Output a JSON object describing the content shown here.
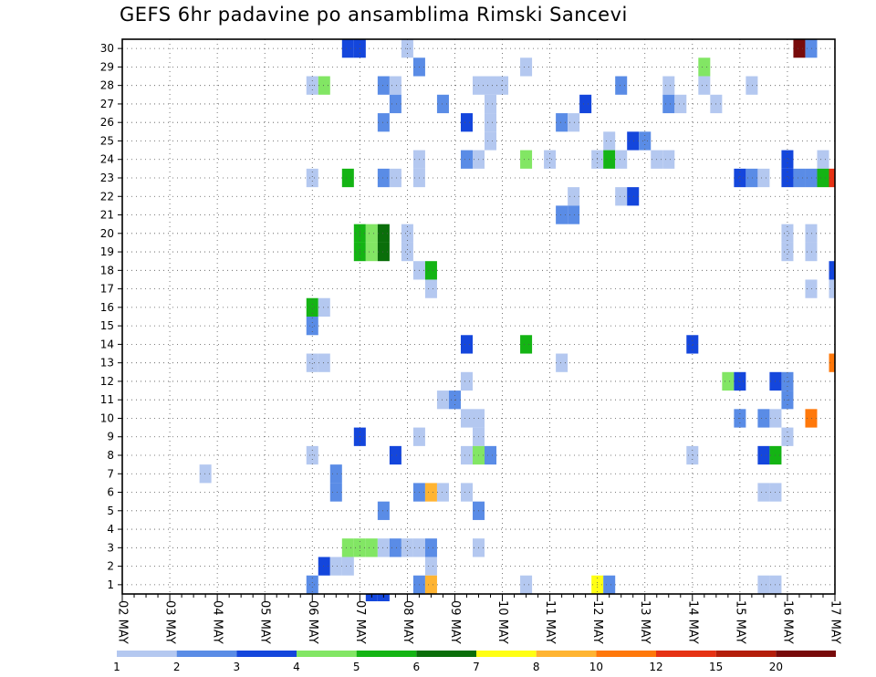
{
  "chart_data": {
    "type": "heatmap",
    "title": "GEFS 6hr padavine po ansamblima Rimski Sancevi",
    "xlabel": "",
    "ylabel": "",
    "x_tick_labels": [
      "02 MAY",
      "03 MAY",
      "04 MAY",
      "05 MAY",
      "06 MAY",
      "07 MAY",
      "08 MAY",
      "09 MAY",
      "10 MAY",
      "11 MAY",
      "12 MAY",
      "13 MAY",
      "14 MAY",
      "15 MAY",
      "16 MAY",
      "17 MAY"
    ],
    "y_tick_labels": [
      "1",
      "2",
      "3",
      "4",
      "5",
      "6",
      "7",
      "8",
      "9",
      "10",
      "11",
      "12",
      "13",
      "14",
      "15",
      "16",
      "17",
      "18",
      "19",
      "20",
      "21",
      "22",
      "23",
      "24",
      "25",
      "26",
      "27",
      "28",
      "29",
      "30"
    ],
    "xlim": [
      0,
      60
    ],
    "ylim": [
      0.5,
      30.5
    ],
    "x_unit": "6-hour steps from 02 MAY 00 UTC",
    "grid": true,
    "colorbar": {
      "position": "bottom",
      "labels": [
        "1",
        "2",
        "3",
        "4",
        "5",
        "6",
        "7",
        "8",
        "10",
        "12",
        "15",
        "20"
      ],
      "colors": [
        "#b4c8f0",
        "#5a8ce6",
        "#1446dc",
        "#82e664",
        "#14b414",
        "#0a6e0a",
        "#ffff14",
        "#ffb432",
        "#ff780a",
        "#e63214",
        "#b41e0a",
        "#780a0a"
      ]
    },
    "cells": [
      [
        19,
        30,
        2
      ],
      [
        20,
        30,
        2
      ],
      [
        24,
        30,
        0
      ],
      [
        57,
        30,
        11
      ],
      [
        58,
        30,
        1
      ],
      [
        25,
        29,
        1
      ],
      [
        34,
        29,
        0
      ],
      [
        49,
        29,
        3
      ],
      [
        16,
        28,
        0
      ],
      [
        17,
        28,
        3
      ],
      [
        22,
        28,
        1
      ],
      [
        23,
        28,
        0
      ],
      [
        30,
        28,
        0
      ],
      [
        31,
        28,
        0
      ],
      [
        32,
        28,
        0
      ],
      [
        42,
        28,
        1
      ],
      [
        46,
        28,
        0
      ],
      [
        49,
        28,
        0
      ],
      [
        53,
        28,
        0
      ],
      [
        23,
        27,
        1
      ],
      [
        27,
        27,
        1
      ],
      [
        31,
        27,
        0
      ],
      [
        39,
        27,
        2
      ],
      [
        46,
        27,
        1
      ],
      [
        47,
        27,
        0
      ],
      [
        50,
        27,
        0
      ],
      [
        22,
        26,
        1
      ],
      [
        29,
        26,
        2
      ],
      [
        31,
        26,
        0
      ],
      [
        37,
        26,
        1
      ],
      [
        38,
        26,
        0
      ],
      [
        31,
        25,
        0
      ],
      [
        41,
        25,
        0
      ],
      [
        43,
        25,
        2
      ],
      [
        44,
        25,
        1
      ],
      [
        25,
        24,
        0
      ],
      [
        29,
        24,
        1
      ],
      [
        30,
        24,
        0
      ],
      [
        34,
        24,
        3
      ],
      [
        36,
        24,
        0
      ],
      [
        40,
        24,
        0
      ],
      [
        41,
        24,
        4
      ],
      [
        42,
        24,
        0
      ],
      [
        45,
        24,
        0
      ],
      [
        46,
        24,
        0
      ],
      [
        56,
        24,
        2
      ],
      [
        59,
        24,
        0
      ],
      [
        16,
        23,
        0
      ],
      [
        19,
        23,
        4
      ],
      [
        22,
        23,
        1
      ],
      [
        23,
        23,
        0
      ],
      [
        25,
        23,
        0
      ],
      [
        52,
        23,
        2
      ],
      [
        53,
        23,
        1
      ],
      [
        54,
        23,
        0
      ],
      [
        56,
        23,
        2
      ],
      [
        57,
        23,
        1
      ],
      [
        58,
        23,
        1
      ],
      [
        59,
        23,
        4
      ],
      [
        60,
        23,
        9
      ],
      [
        38,
        22,
        0
      ],
      [
        42,
        22,
        0
      ],
      [
        43,
        22,
        2
      ],
      [
        37,
        21,
        1
      ],
      [
        38,
        21,
        1
      ],
      [
        20,
        20,
        4
      ],
      [
        21,
        20,
        3
      ],
      [
        22,
        20,
        5
      ],
      [
        24,
        20,
        0
      ],
      [
        56,
        20,
        0
      ],
      [
        58,
        20,
        0
      ],
      [
        20,
        19,
        4
      ],
      [
        21,
        19,
        3
      ],
      [
        22,
        19,
        5
      ],
      [
        24,
        19,
        0
      ],
      [
        56,
        19,
        0
      ],
      [
        58,
        19,
        0
      ],
      [
        25,
        18,
        0
      ],
      [
        26,
        18,
        4
      ],
      [
        60,
        18,
        2
      ],
      [
        26,
        17,
        0
      ],
      [
        58,
        17,
        0
      ],
      [
        60,
        17,
        0
      ],
      [
        16,
        16,
        4
      ],
      [
        17,
        16,
        0
      ],
      [
        16,
        15,
        1
      ],
      [
        29,
        14,
        2
      ],
      [
        34,
        14,
        4
      ],
      [
        48,
        14,
        2
      ],
      [
        16,
        13,
        0
      ],
      [
        17,
        13,
        0
      ],
      [
        37,
        13,
        0
      ],
      [
        60,
        13,
        8
      ],
      [
        29,
        12,
        0
      ],
      [
        51,
        12,
        3
      ],
      [
        52,
        12,
        2
      ],
      [
        55,
        12,
        2
      ],
      [
        56,
        12,
        1
      ],
      [
        27,
        11,
        0
      ],
      [
        28,
        11,
        1
      ],
      [
        56,
        11,
        1
      ],
      [
        29,
        10,
        0
      ],
      [
        30,
        10,
        0
      ],
      [
        52,
        10,
        1
      ],
      [
        54,
        10,
        1
      ],
      [
        55,
        10,
        0
      ],
      [
        58,
        10,
        8
      ],
      [
        20,
        9,
        2
      ],
      [
        25,
        9,
        0
      ],
      [
        30,
        9,
        0
      ],
      [
        56,
        9,
        0
      ],
      [
        16,
        8,
        0
      ],
      [
        23,
        8,
        2
      ],
      [
        29,
        8,
        0
      ],
      [
        30,
        8,
        3
      ],
      [
        31,
        8,
        1
      ],
      [
        48,
        8,
        0
      ],
      [
        54,
        8,
        2
      ],
      [
        55,
        8,
        4
      ],
      [
        7,
        7,
        0
      ],
      [
        18,
        7,
        1
      ],
      [
        18,
        6,
        1
      ],
      [
        25,
        6,
        1
      ],
      [
        26,
        6,
        7
      ],
      [
        27,
        6,
        0
      ],
      [
        29,
        6,
        0
      ],
      [
        54,
        6,
        0
      ],
      [
        55,
        6,
        0
      ],
      [
        22,
        5,
        1
      ],
      [
        30,
        5,
        1
      ],
      [
        19,
        3,
        3
      ],
      [
        20,
        3,
        3
      ],
      [
        21,
        3,
        3
      ],
      [
        22,
        3,
        0
      ],
      [
        23,
        3,
        1
      ],
      [
        24,
        3,
        0
      ],
      [
        25,
        3,
        0
      ],
      [
        26,
        3,
        1
      ],
      [
        30,
        3,
        0
      ],
      [
        17,
        2,
        2
      ],
      [
        18,
        2,
        0
      ],
      [
        19,
        2,
        0
      ],
      [
        26,
        2,
        0
      ],
      [
        16,
        1,
        1
      ],
      [
        25,
        1,
        1
      ],
      [
        26,
        1,
        7
      ],
      [
        34,
        1,
        0
      ],
      [
        40,
        1,
        6
      ],
      [
        41,
        1,
        1
      ],
      [
        54,
        1,
        0
      ],
      [
        55,
        1,
        0
      ],
      [
        21,
        0,
        2
      ],
      [
        22,
        0,
        2
      ]
    ]
  }
}
